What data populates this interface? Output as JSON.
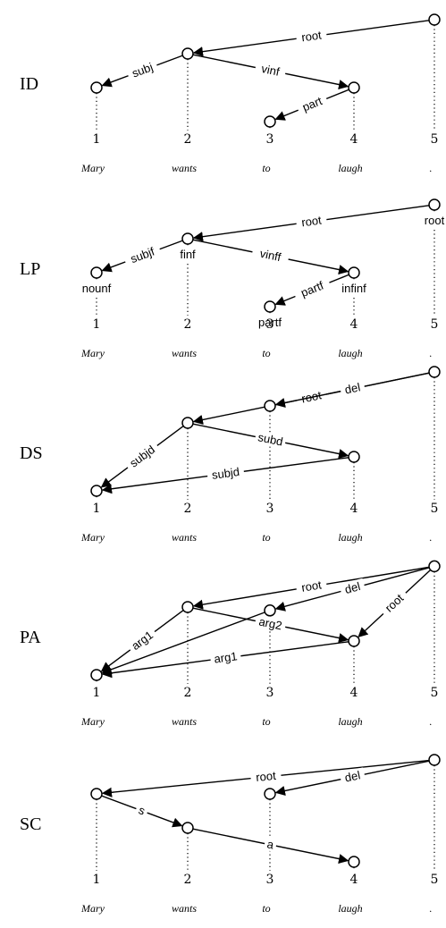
{
  "words": [
    "Mary",
    "wants",
    "to",
    "laugh",
    "."
  ],
  "indices": [
    "1",
    "2",
    "3",
    "4",
    "5"
  ],
  "panels": [
    {
      "label": "ID",
      "nodes": [
        {
          "i": 1,
          "depth": 1
        },
        {
          "i": 2,
          "depth": 0
        },
        {
          "i": 3,
          "depth": 2
        },
        {
          "i": 4,
          "depth": 1
        },
        {
          "i": 5,
          "depth": -1
        }
      ],
      "edges": [
        {
          "from": 5,
          "to": 2,
          "label": "root"
        },
        {
          "from": 2,
          "to": 1,
          "label": "subj"
        },
        {
          "from": 2,
          "to": 4,
          "label": "vinf"
        },
        {
          "from": 4,
          "to": 3,
          "label": "part"
        }
      ],
      "node_labels": []
    },
    {
      "label": "LP",
      "nodes": [
        {
          "i": 1,
          "depth": 1
        },
        {
          "i": 2,
          "depth": 0
        },
        {
          "i": 3,
          "depth": 2
        },
        {
          "i": 4,
          "depth": 1
        },
        {
          "i": 5,
          "depth": -1
        }
      ],
      "edges": [
        {
          "from": 5,
          "to": 2,
          "label": "root"
        },
        {
          "from": 2,
          "to": 1,
          "label": "subjf"
        },
        {
          "from": 2,
          "to": 4,
          "label": "vinff"
        },
        {
          "from": 4,
          "to": 3,
          "label": "partf"
        }
      ],
      "node_labels": [
        {
          "i": 1,
          "text": "nounf"
        },
        {
          "i": 2,
          "text": "finf"
        },
        {
          "i": 3,
          "text": "partf"
        },
        {
          "i": 4,
          "text": "infinf"
        },
        {
          "i": 5,
          "text": "root"
        }
      ]
    },
    {
      "label": "DS",
      "nodes": [
        {
          "i": 1,
          "depth": 2
        },
        {
          "i": 2,
          "depth": 0
        },
        {
          "i": 3,
          "depth": -0.5
        },
        {
          "i": 4,
          "depth": 1
        },
        {
          "i": 5,
          "depth": -1.5
        }
      ],
      "edges": [
        {
          "from": 5,
          "to": 2,
          "label": "root"
        },
        {
          "from": 5,
          "to": 3,
          "label": "del"
        },
        {
          "from": 2,
          "to": 1,
          "label": "subjd"
        },
        {
          "from": 2,
          "to": 4,
          "label": "subd"
        },
        {
          "from": 4,
          "to": 1,
          "label": "subjd"
        }
      ],
      "node_labels": []
    },
    {
      "label": "PA",
      "nodes": [
        {
          "i": 1,
          "depth": 2
        },
        {
          "i": 2,
          "depth": 0
        },
        {
          "i": 3,
          "depth": 0.1
        },
        {
          "i": 4,
          "depth": 1
        },
        {
          "i": 5,
          "depth": -1.2
        }
      ],
      "edges": [
        {
          "from": 5,
          "to": 2,
          "label": "root"
        },
        {
          "from": 5,
          "to": 3,
          "label": "del"
        },
        {
          "from": 5,
          "to": 4,
          "label": "root"
        },
        {
          "from": 2,
          "to": 1,
          "label": "arg1"
        },
        {
          "from": 4,
          "to": 1,
          "label": "arg1"
        },
        {
          "from": 2,
          "to": 4,
          "label": "arg2"
        },
        {
          "from": 3,
          "to": 1,
          "label": ""
        }
      ],
      "node_labels": []
    },
    {
      "label": "SC",
      "nodes": [
        {
          "i": 1,
          "depth": 0
        },
        {
          "i": 2,
          "depth": 1
        },
        {
          "i": 3,
          "depth": 0
        },
        {
          "i": 4,
          "depth": 2
        },
        {
          "i": 5,
          "depth": -1
        }
      ],
      "edges": [
        {
          "from": 5,
          "to": 1,
          "label": "root"
        },
        {
          "from": 5,
          "to": 3,
          "label": "del"
        },
        {
          "from": 1,
          "to": 2,
          "label": "s"
        },
        {
          "from": 2,
          "to": 4,
          "label": "a"
        }
      ],
      "node_labels": []
    }
  ]
}
